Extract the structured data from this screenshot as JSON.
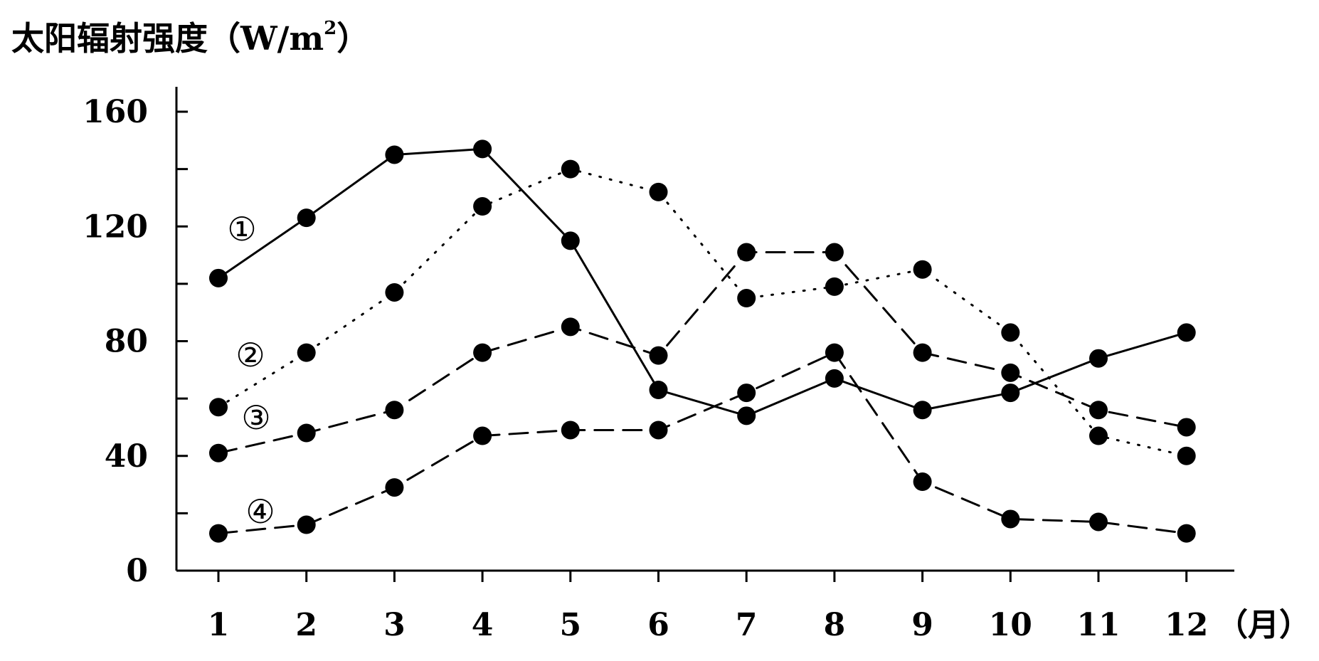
{
  "chart_data": {
    "type": "line",
    "ylabel": {
      "main": "太阳辐射强度（W/m",
      "sup": "2",
      "end": "）"
    },
    "xunit": "（月）",
    "categories": [
      "1",
      "2",
      "3",
      "4",
      "5",
      "6",
      "7",
      "8",
      "9",
      "10",
      "11",
      "12"
    ],
    "yticks": [
      0,
      40,
      80,
      120,
      160
    ],
    "ylim": [
      0,
      160
    ],
    "series": [
      {
        "name": "①",
        "style": "solid",
        "values": [
          102,
          123,
          145,
          147,
          115,
          63,
          54,
          67,
          56,
          62,
          74,
          83
        ]
      },
      {
        "name": "②",
        "style": "dotted",
        "values": [
          57,
          76,
          97,
          127,
          140,
          132,
          95,
          99,
          105,
          83,
          47,
          40
        ]
      },
      {
        "name": "③",
        "style": "dashed",
        "values": [
          41,
          48,
          56,
          76,
          85,
          75,
          111,
          111,
          76,
          69,
          56,
          50
        ]
      },
      {
        "name": "④",
        "style": "dashed",
        "values": [
          13,
          16,
          29,
          47,
          49,
          49,
          62,
          76,
          31,
          18,
          17,
          13
        ]
      }
    ],
    "grid": false,
    "legend": "inline labels"
  }
}
